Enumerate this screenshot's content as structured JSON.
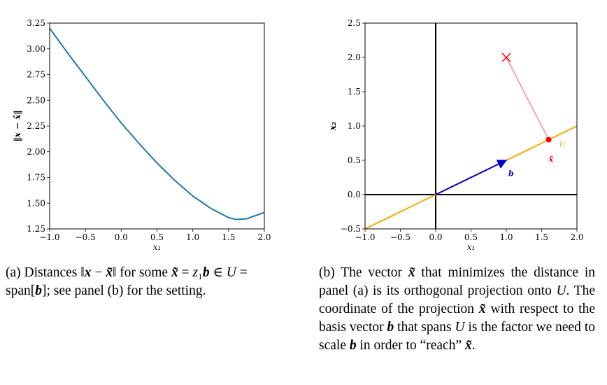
{
  "figure": {
    "caption_a": {
      "label": "(a)",
      "text": "Distances ‖x − x̃‖ for some x̃ = z₁b ∈ U = span[b]; see panel (b) for the setting."
    },
    "caption_b": {
      "label": "(b)",
      "text": "The vector x̃ that minimizes the distance in panel (a) is its orthogonal projection onto U. The coordinate of the projection x̃ with respect to the basis vector b that spans U is the factor we need to scale b in order to “reach” x̃."
    }
  },
  "chart_data": [
    {
      "type": "line",
      "xlabel": "x₁",
      "ylabel": "‖x − x̃‖",
      "xlim": [
        -1.0,
        2.0
      ],
      "ylim": [
        1.25,
        3.25
      ],
      "xticks": [
        "−1.0",
        "−0.5",
        "0.0",
        "0.5",
        "1.0",
        "1.5",
        "2.0"
      ],
      "yticks": [
        "1.25",
        "1.50",
        "1.75",
        "2.00",
        "2.25",
        "2.50",
        "2.75",
        "3.00",
        "3.25"
      ],
      "series": [
        {
          "color": "#1f77b4",
          "x": [
            -1.0,
            -0.75,
            -0.5,
            -0.25,
            0.0,
            0.25,
            0.5,
            0.75,
            1.0,
            1.25,
            1.5,
            1.6,
            1.75,
            2.0
          ],
          "y": [
            3.2,
            2.96,
            2.73,
            2.5,
            2.28,
            2.08,
            1.89,
            1.72,
            1.57,
            1.45,
            1.36,
            1.342,
            1.348,
            1.41
          ]
        }
      ],
      "grid": false
    },
    {
      "type": "scatter",
      "xlabel": "x₁",
      "ylabel": "x₂",
      "xlim": [
        -1.0,
        2.0
      ],
      "ylim": [
        -0.5,
        2.5
      ],
      "xticks": [
        "−1.0",
        "−0.5",
        "0.0",
        "0.5",
        "1.0",
        "1.5",
        "2.0"
      ],
      "yticks": [
        "−0.5",
        "0.0",
        "0.5",
        "1.0",
        "1.5",
        "2.0",
        "2.5"
      ],
      "subspace_line": {
        "label": "U",
        "color": "#ffa500",
        "x": [
          -1.0,
          2.0
        ],
        "y": [
          -0.5,
          1.0
        ]
      },
      "vector_b": {
        "label": "b",
        "color": "#0000cc",
        "from": [
          0,
          0
        ],
        "to": [
          1.0,
          0.5
        ]
      },
      "point_x": {
        "color": "#ff0000",
        "marker": "x",
        "x": 1.0,
        "y": 2.0
      },
      "projection": {
        "label": "x̃",
        "color": "#ff0000",
        "x": 1.6,
        "y": 0.8
      },
      "projection_line": {
        "color": "#f4a6a6",
        "from": [
          1.0,
          2.0
        ],
        "to": [
          1.6,
          0.8
        ]
      },
      "axes_lines": {
        "color": "#000000"
      },
      "grid": false
    }
  ]
}
